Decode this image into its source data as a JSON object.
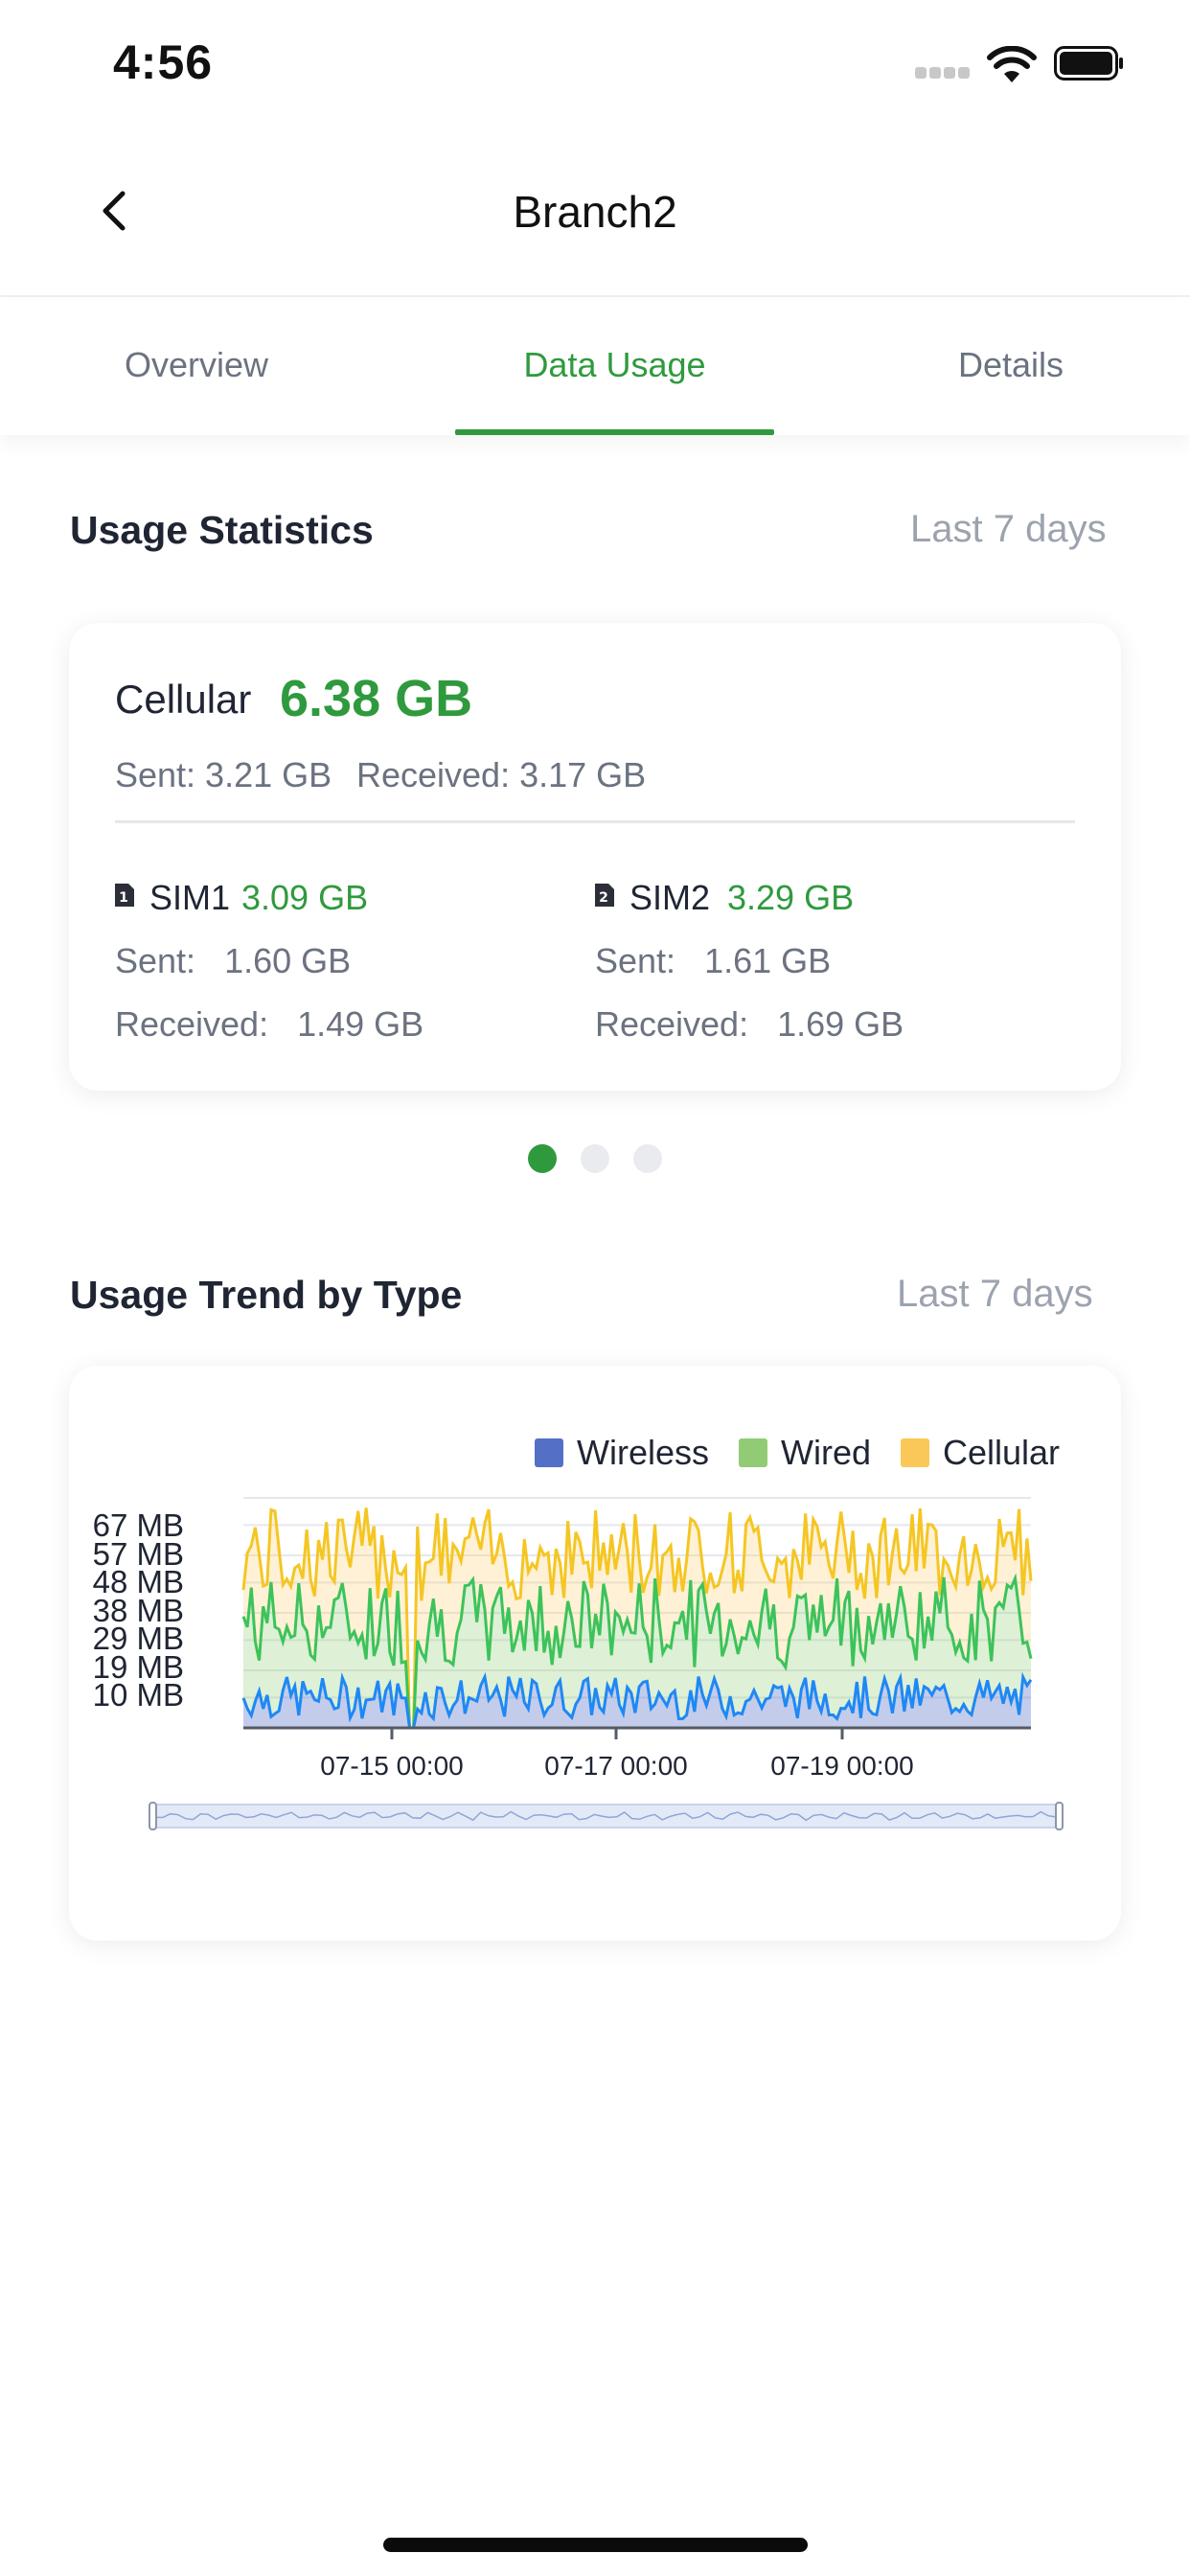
{
  "status_bar": {
    "time": "4:56"
  },
  "header": {
    "title": "Branch2"
  },
  "tabs": [
    {
      "label": "Overview",
      "active": false
    },
    {
      "label": "Data Usage",
      "active": true
    },
    {
      "label": "Details",
      "active": false
    }
  ],
  "usage_statistics": {
    "title": "Usage Statistics",
    "range": "Last 7 days",
    "cellular_label": "Cellular",
    "cellular_total": "6.38 GB",
    "sent": "Sent: 3.21 GB",
    "received": "Received: 3.17 GB",
    "sims": [
      {
        "name": "SIM1",
        "badge": "1",
        "total": "3.09 GB",
        "sent": "Sent:   1.60 GB",
        "received": "Received:   1.49 GB"
      },
      {
        "name": "SIM2",
        "badge": "2",
        "total": "3.29 GB",
        "sent": "Sent:   1.61 GB",
        "received": "Received:   1.69 GB"
      }
    ],
    "pagination": {
      "pages": 3,
      "active": 0
    }
  },
  "usage_trend": {
    "title": "Usage Trend by Type",
    "range": "Last 7 days"
  },
  "colors": {
    "accent": "#2f9a3d",
    "wireless": "#5470c6",
    "wired": "#91cc75",
    "cellular": "#fac858",
    "wireless_line": "#1e88f5",
    "wired_line": "#3cc35a",
    "cellular_line": "#f5c623"
  },
  "chart_data": {
    "type": "area",
    "legend": [
      "Wireless",
      "Wired",
      "Cellular"
    ],
    "legend_position": "top-right",
    "y_ticks": [
      "10 MB",
      "19 MB",
      "29 MB",
      "38 MB",
      "48 MB",
      "57 MB",
      "67 MB"
    ],
    "x_ticks": [
      "07-15 00:00",
      "07-17 00:00",
      "07-19 00:00"
    ],
    "ylim_mb": [
      0,
      76
    ],
    "stacked": true,
    "grid": true,
    "series_typical_stacked_mb": {
      "Wireless": [
        3,
        17
      ],
      "Wired": [
        20,
        50
      ],
      "Cellular": [
        42,
        73
      ]
    },
    "has_zoom_slider": true
  }
}
